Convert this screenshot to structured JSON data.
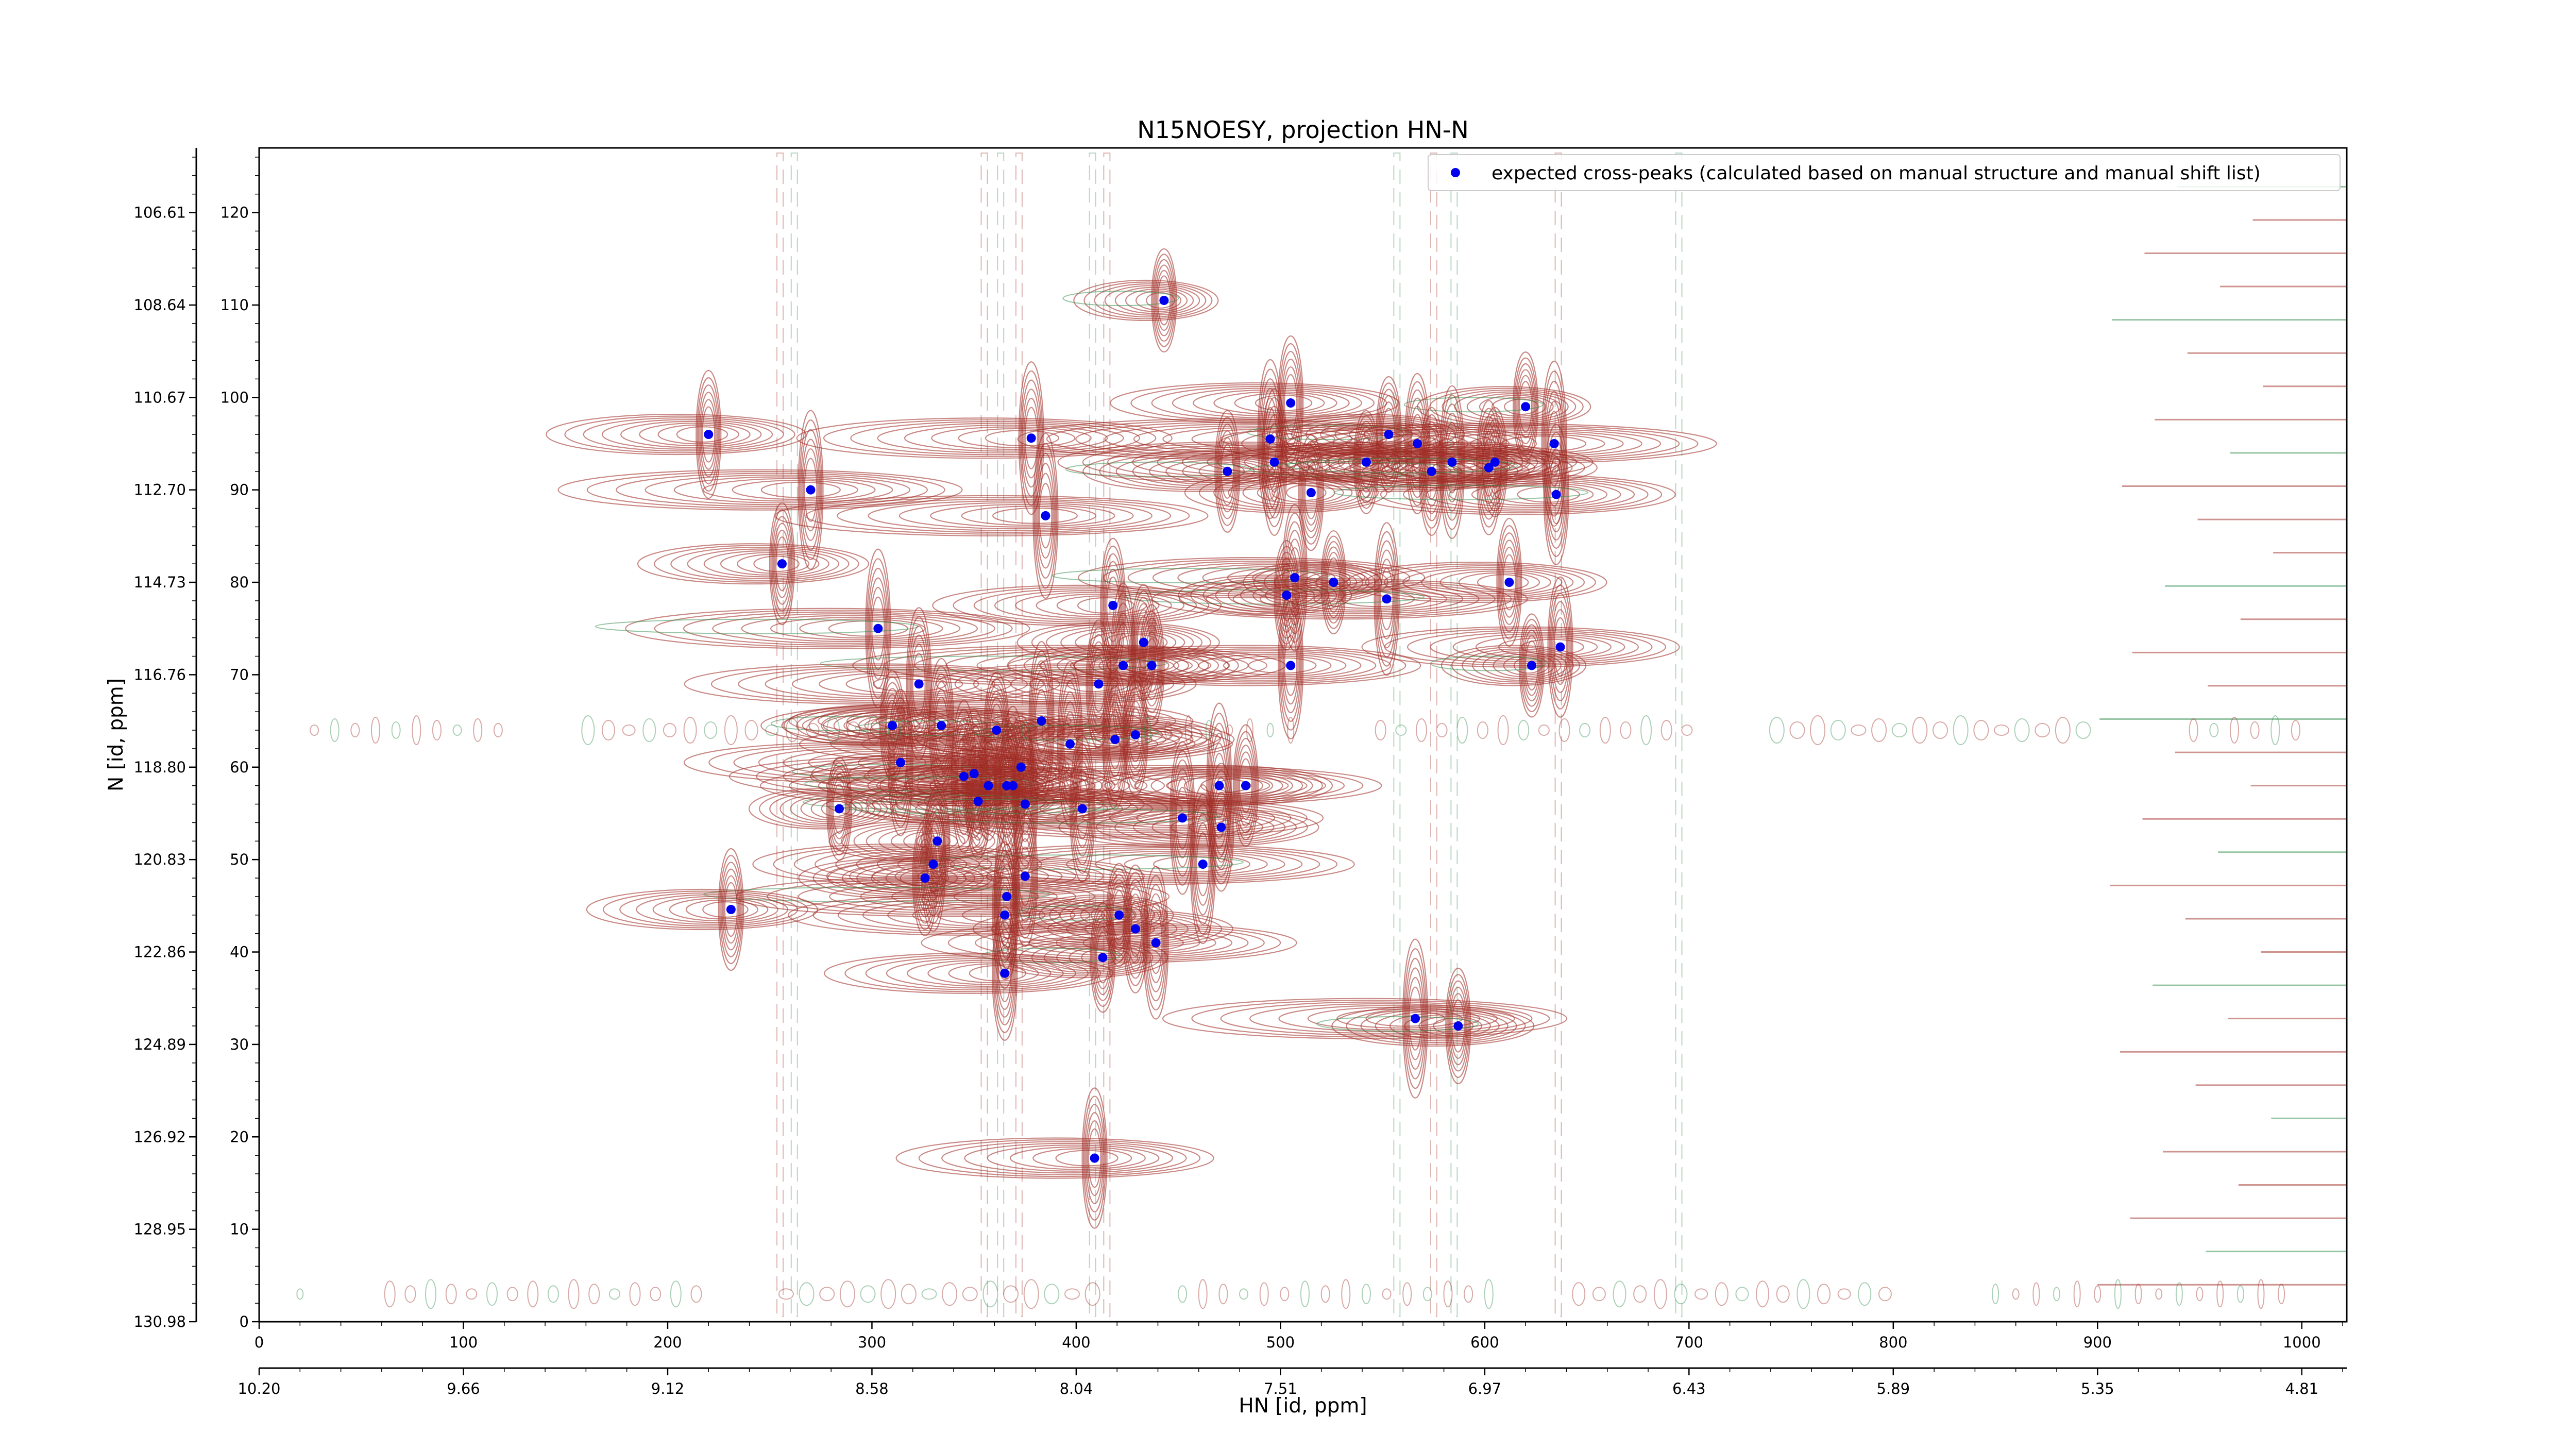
{
  "chart_data": {
    "type": "scatter",
    "title": "N15NOESY, projection HN-N",
    "xlabel": "HN [id, ppm]",
    "ylabel": "N [id, ppm]",
    "xlim": [
      0,
      1022
    ],
    "ylim": [
      0,
      127
    ],
    "x_ticks": [
      0,
      100,
      200,
      300,
      400,
      500,
      600,
      700,
      800,
      900,
      1000
    ],
    "y_ticks": [
      0,
      10,
      20,
      30,
      40,
      50,
      60,
      70,
      80,
      90,
      100,
      110,
      120
    ],
    "ppm_x_ticks": [
      "10.20",
      "9.66",
      "9.12",
      "8.58",
      "8.04",
      "7.51",
      "6.97",
      "6.43",
      "5.89",
      "5.35",
      "4.81"
    ],
    "ppm_y_ticks": [
      "130.98",
      "128.95",
      "126.92",
      "124.89",
      "122.86",
      "120.83",
      "118.80",
      "116.76",
      "114.73",
      "112.70",
      "110.67",
      "108.64",
      "106.61"
    ],
    "legend": {
      "position": "top-right",
      "label": "expected cross-peaks (calculated based on manual structure and manual shift list)"
    },
    "colors": {
      "marker": "#0000ee",
      "contour_positive": "#9e2a22",
      "contour_negative": "#2e8b4a"
    },
    "series": [
      {
        "name": "expected cross-peaks (calculated based on manual structure and manual shift list)",
        "points": [
          [
            443,
            110.5
          ],
          [
            220,
            96
          ],
          [
            378,
            95.6
          ],
          [
            620,
            99
          ],
          [
            505,
            99.4
          ],
          [
            495,
            95.5
          ],
          [
            553,
            96
          ],
          [
            567,
            95
          ],
          [
            634,
            95
          ],
          [
            474,
            92
          ],
          [
            497,
            93
          ],
          [
            542,
            93
          ],
          [
            574,
            92
          ],
          [
            584,
            93
          ],
          [
            605,
            93
          ],
          [
            602,
            92.4
          ],
          [
            270,
            90
          ],
          [
            515,
            89.7
          ],
          [
            635,
            89.5
          ],
          [
            385,
            87.2
          ],
          [
            256,
            82
          ],
          [
            507,
            80.5
          ],
          [
            526,
            80
          ],
          [
            612,
            80
          ],
          [
            552,
            78.2
          ],
          [
            503,
            78.6
          ],
          [
            418,
            77.5
          ],
          [
            303,
            75
          ],
          [
            433,
            73.5
          ],
          [
            637,
            73
          ],
          [
            423,
            71
          ],
          [
            437,
            71
          ],
          [
            505,
            71
          ],
          [
            623,
            71
          ],
          [
            411,
            69
          ],
          [
            323,
            69
          ],
          [
            310,
            64.5
          ],
          [
            334,
            64.5
          ],
          [
            383,
            65
          ],
          [
            361,
            64
          ],
          [
            419,
            63
          ],
          [
            397,
            62.5
          ],
          [
            429,
            63.5
          ],
          [
            314,
            60.5
          ],
          [
            373,
            60
          ],
          [
            350,
            59.3
          ],
          [
            345,
            59
          ],
          [
            357,
            58
          ],
          [
            366,
            58
          ],
          [
            369,
            58
          ],
          [
            352,
            56.3
          ],
          [
            375,
            56
          ],
          [
            470,
            58
          ],
          [
            483,
            58
          ],
          [
            403,
            55.5
          ],
          [
            284,
            55.5
          ],
          [
            471,
            53.5
          ],
          [
            452,
            54.5
          ],
          [
            332,
            52
          ],
          [
            330,
            49.5
          ],
          [
            462,
            49.5
          ],
          [
            326,
            48
          ],
          [
            375,
            48.2
          ],
          [
            366,
            46
          ],
          [
            231,
            44.6
          ],
          [
            365,
            44
          ],
          [
            421,
            44
          ],
          [
            429,
            42.5
          ],
          [
            439,
            41
          ],
          [
            413,
            39.4
          ],
          [
            365,
            37.7
          ],
          [
            566,
            32.8
          ],
          [
            587,
            32
          ],
          [
            409,
            17.7
          ]
        ]
      }
    ]
  }
}
